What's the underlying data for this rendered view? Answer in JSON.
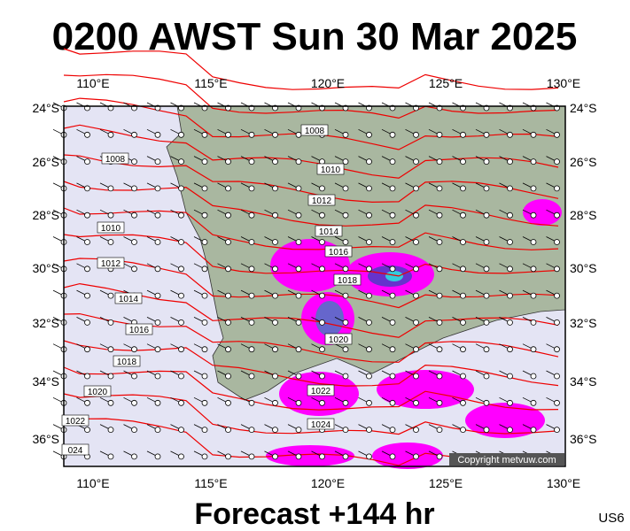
{
  "header": {
    "title": "0200 AWST Sun 30 Mar 2025"
  },
  "footer": {
    "forecast": "Forecast +144 hr",
    "code": "US6"
  },
  "copyright": "Copyright metvuw.com",
  "longitude_labels": [
    "110°E",
    "115°E",
    "120°E",
    "125°E",
    "130°E"
  ],
  "latitude_labels": [
    "24°S",
    "26°S",
    "28°S",
    "30°S",
    "32°S",
    "34°S",
    "36°S"
  ],
  "isobar_labels": [
    "1008",
    "1010",
    "1012",
    "1014",
    "1016",
    "1018",
    "1020",
    "1022",
    "1024",
    "1008",
    "1010",
    "1012",
    "1014",
    "1016",
    "1018",
    "1020",
    "1022",
    "024"
  ]
}
